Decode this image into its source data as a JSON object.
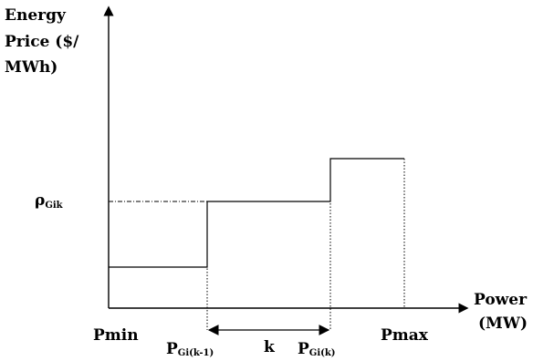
{
  "y_axis_label": [
    "Energy",
    "Price ($/",
    "MWh)"
  ],
  "x_axis_label": [
    "Power",
    "(MW)"
  ],
  "price_label": {
    "main": "ρ",
    "sub": "Gik"
  },
  "pmin_label": "Pmin",
  "pmax_label": "Pmax",
  "p_prev_label": {
    "main": "P",
    "sub": "Gi(k-1)"
  },
  "p_k_label": {
    "main": "P",
    "sub": "Gi(k)"
  },
  "block_label": "k",
  "colors": {
    "line": "#000000",
    "background": "#ffffff"
  }
}
